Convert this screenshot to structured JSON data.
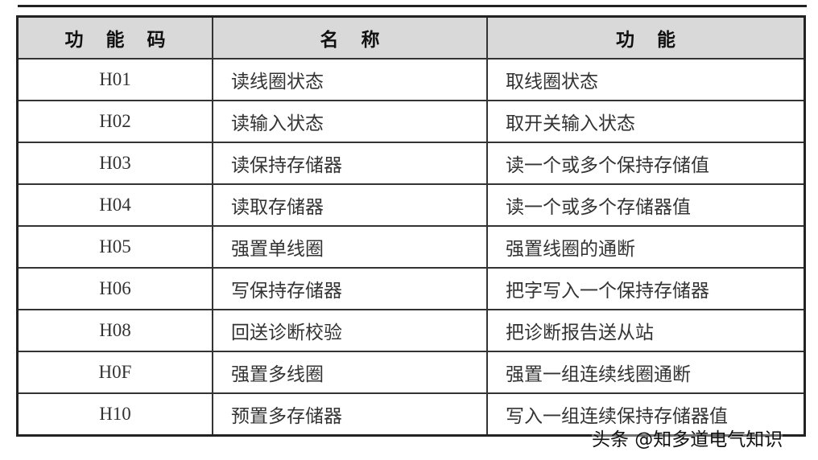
{
  "headers": [
    "功能码",
    "名称",
    "功能"
  ],
  "rows": [
    [
      "H01",
      "读线圈状态",
      "取线圈状态"
    ],
    [
      "H02",
      "读输入状态",
      "取开关输入状态"
    ],
    [
      "H03",
      "读保持存储器",
      "读一个或多个保持存储值"
    ],
    [
      "H04",
      "读取存储器",
      "读一个或多个存储器值"
    ],
    [
      "H05",
      "强置单线圈",
      "强置线圈的通断"
    ],
    [
      "H06",
      "写保持存储器",
      "把字写入一个保持存储器"
    ],
    [
      "H08",
      "回送诊断校验",
      "把诊断报告送从站"
    ],
    [
      "H0F",
      "强置多线圈",
      "强置一组连续线圈通断"
    ],
    [
      "H10",
      "预置多存储器",
      "写入一组连续保持存储器值"
    ]
  ],
  "watermark": "头条 @知多道电气知识"
}
